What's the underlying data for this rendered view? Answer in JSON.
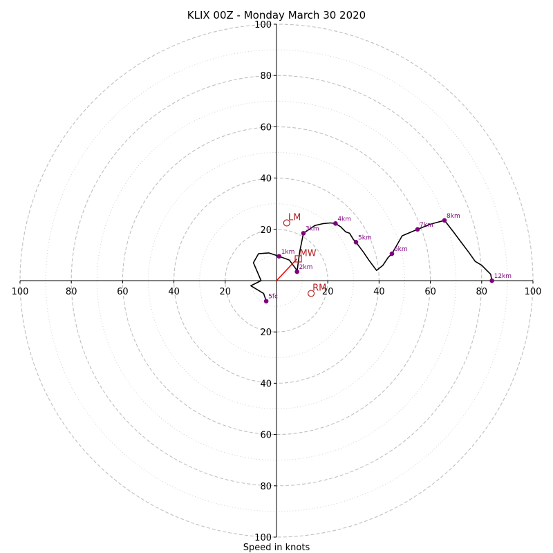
{
  "chart_data": {
    "type": "hodograph",
    "title": "KLIX 00Z - Monday March 30 2020",
    "xlabel": "Speed in knots",
    "ring_labels": [
      "100",
      "80",
      "60",
      "40",
      "20",
      "20",
      "40",
      "60",
      "80",
      "100"
    ],
    "x_tick_values": [
      -100,
      -80,
      -60,
      -40,
      -20,
      20,
      40,
      60,
      80,
      100
    ],
    "y_tick_values": [
      100,
      80,
      60,
      40,
      20,
      -20,
      -40,
      -60,
      -80,
      -100
    ],
    "range": [
      -100,
      100
    ],
    "rings_major": [
      20,
      40,
      60,
      80,
      100
    ],
    "rings_minor": [
      10,
      30,
      50,
      70,
      90
    ],
    "profile": [
      [
        -4,
        -8
      ],
      [
        -5,
        -5
      ],
      [
        -10,
        -2
      ],
      [
        -6,
        0
      ],
      [
        -9,
        7
      ],
      [
        -7,
        10.5
      ],
      [
        -3,
        10.8
      ],
      [
        1,
        9.5
      ],
      [
        5,
        8
      ],
      [
        8,
        4
      ],
      [
        8,
        3.5
      ],
      [
        9,
        11
      ],
      [
        10,
        16
      ],
      [
        10.5,
        18.5
      ],
      [
        12,
        19.5
      ],
      [
        15,
        21.5
      ],
      [
        18,
        22.2
      ],
      [
        21,
        22.5
      ],
      [
        23,
        22.3
      ],
      [
        25,
        21
      ],
      [
        27,
        19
      ],
      [
        28.5,
        18.5
      ],
      [
        30,
        16
      ],
      [
        31,
        15
      ],
      [
        34,
        11
      ],
      [
        36,
        8
      ],
      [
        39,
        4
      ],
      [
        41.5,
        6
      ],
      [
        43.5,
        9
      ],
      [
        45,
        10.5
      ],
      [
        47,
        14
      ],
      [
        49,
        17.5
      ],
      [
        55,
        20
      ],
      [
        60,
        22
      ],
      [
        65.5,
        23.5
      ],
      [
        69,
        19
      ],
      [
        72,
        15
      ],
      [
        75,
        11
      ],
      [
        77.5,
        7.5
      ],
      [
        80,
        6
      ],
      [
        82,
        4
      ],
      [
        83.5,
        2.5
      ],
      [
        84,
        0
      ]
    ],
    "height_markers": [
      {
        "label": "5fc",
        "u": -4,
        "v": -8
      },
      {
        "label": "1km",
        "u": 1,
        "v": 9.5
      },
      {
        "label": "2km",
        "u": 8,
        "v": 3.5
      },
      {
        "label": "3km",
        "u": 10.5,
        "v": 18.5
      },
      {
        "label": "4km",
        "u": 23,
        "v": 22.3
      },
      {
        "label": "5km",
        "u": 31,
        "v": 15
      },
      {
        "label": "6km",
        "u": 45,
        "v": 10.5
      },
      {
        "label": "7km",
        "u": 55,
        "v": 20
      },
      {
        "label": "8km",
        "u": 65.5,
        "v": 23.5
      },
      {
        "label": "12km",
        "u": 84,
        "v": 0
      }
    ],
    "motion_markers": [
      {
        "label": "LM",
        "u": 4,
        "v": 22.5,
        "shape": "circle"
      },
      {
        "label": "MW",
        "u": 8.5,
        "v": 8.5,
        "shape": "square"
      },
      {
        "label": "RM",
        "u": 13.5,
        "v": -5,
        "shape": "circle"
      }
    ],
    "storm_vector": {
      "from": [
        0,
        0
      ],
      "to": [
        8,
        8.5
      ]
    },
    "colors": {
      "profile": "#000000",
      "height_marker": "#7f007f",
      "motion_marker": "#b22222",
      "storm_vector": "#ff0000",
      "major_ring": "#bfbfbf",
      "minor_ring": "#d0d0d0",
      "axes": "#000000"
    }
  }
}
